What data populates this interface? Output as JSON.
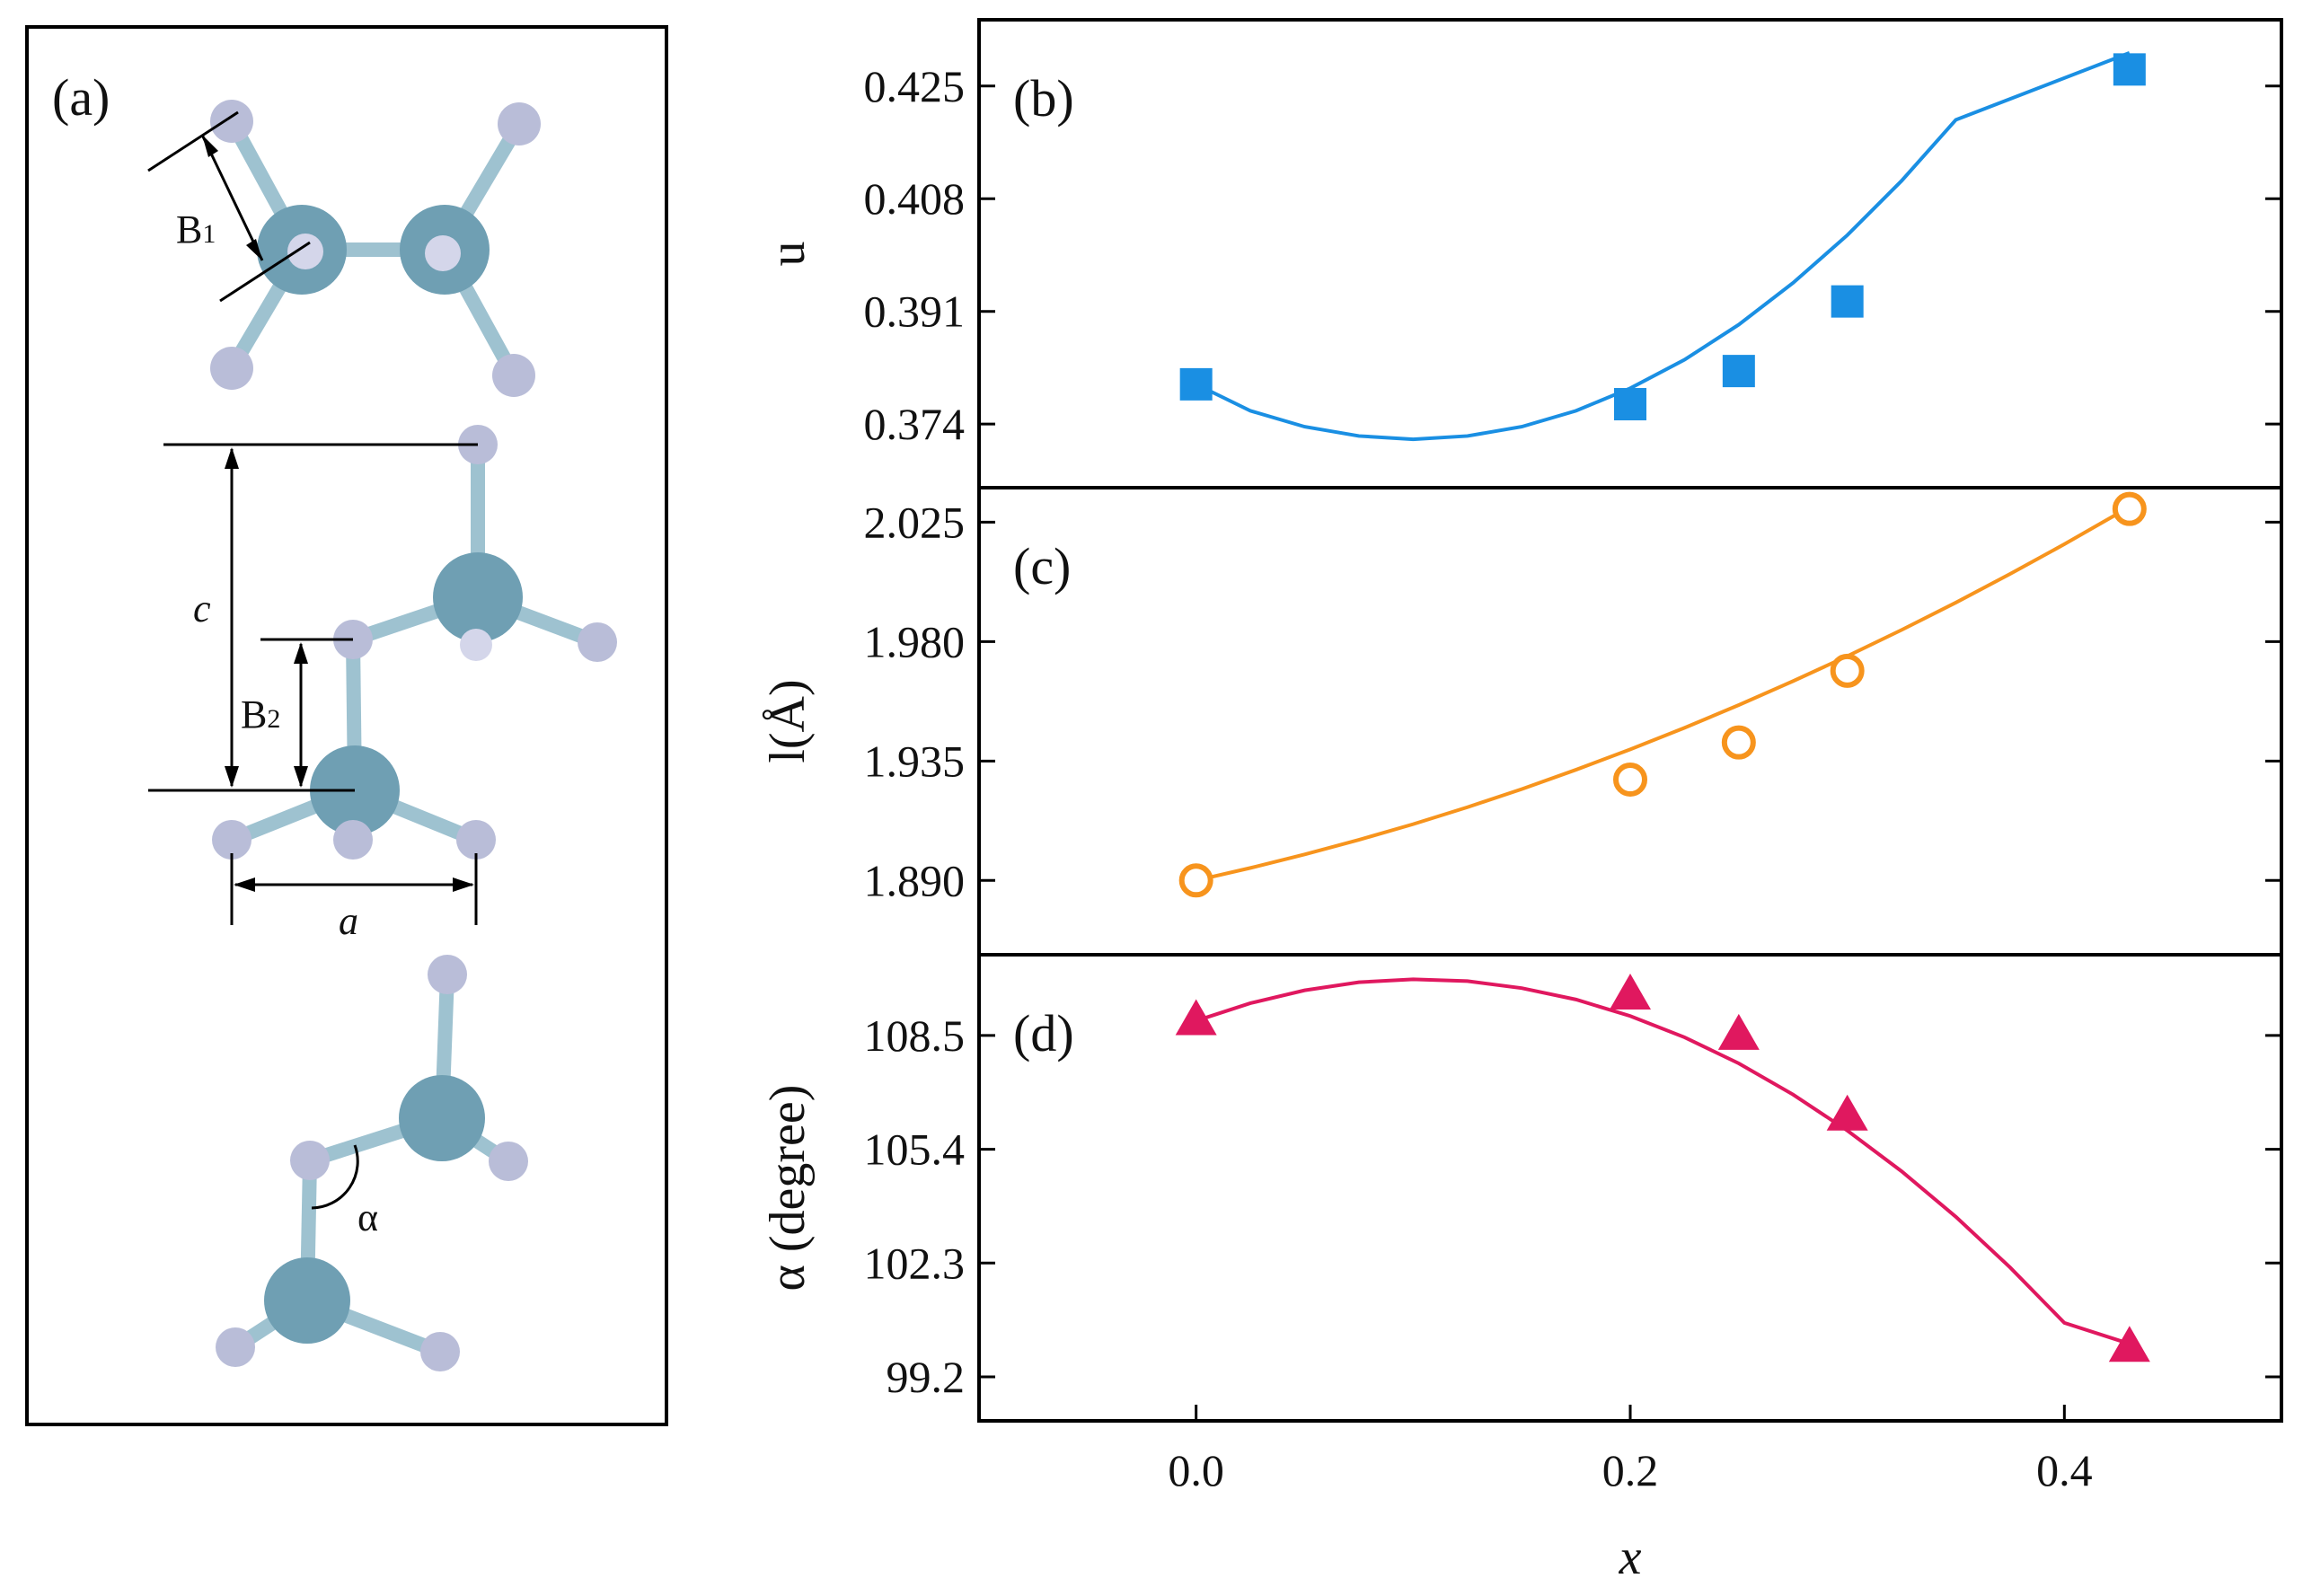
{
  "panel_a": {
    "label": "(a)",
    "bond_labels": {
      "b1": "B",
      "b1_sub": "1",
      "b2": "B",
      "b2_sub": "2"
    },
    "lattice_labels": {
      "c": "c",
      "a": "a"
    },
    "angle_label": "α",
    "colors": {
      "large_atom": "#6f9fb3",
      "small_atom": "#b9bdd8",
      "frame": "#000000"
    }
  },
  "chart_data": [
    {
      "type": "line",
      "panel_label": "(b)",
      "ylabel": "u",
      "xlabel": "",
      "x": [
        0.0,
        0.2,
        0.25,
        0.3,
        0.43
      ],
      "y": [
        0.38,
        0.377,
        0.382,
        0.3925,
        0.4275
      ],
      "fit": [
        0.38,
        0.376,
        0.3736,
        0.3722,
        0.3717,
        0.3722,
        0.3736,
        0.376,
        0.3794,
        0.3837,
        0.389,
        0.3953,
        0.4025,
        0.4107,
        0.4199,
        0.43
      ],
      "fit_x_max": 0.43,
      "yticks": [
        0.374,
        0.391,
        0.408,
        0.425
      ],
      "ytick_labels": [
        "0.374",
        "0.391",
        "0.408",
        "0.425"
      ],
      "ylim": [
        0.3644,
        0.435
      ],
      "xlim": [
        -0.1,
        0.5
      ],
      "marker": "square-filled",
      "color": "#1a8fe3"
    },
    {
      "type": "line",
      "panel_label": "(c)",
      "ylabel": "l(Å)",
      "xlabel": "",
      "x": [
        0.0,
        0.2,
        0.25,
        0.3,
        0.43
      ],
      "y": [
        1.89,
        1.928,
        1.942,
        1.969,
        2.03
      ],
      "fit": [
        1.89,
        1.8947,
        1.8998,
        1.9053,
        1.9112,
        1.9176,
        1.9244,
        1.9317,
        1.9394,
        1.9475,
        1.9561,
        1.9651,
        1.9745,
        1.9844,
        1.9947,
        2.0055,
        2.0167,
        2.0284,
        2.03
      ],
      "fit_x_max": 0.43,
      "yticks": [
        1.89,
        1.935,
        1.98,
        2.025
      ],
      "ytick_labels": [
        "1.890",
        "1.935",
        "1.980",
        "2.025"
      ],
      "ylim": [
        1.862,
        2.038
      ],
      "xlim": [
        -0.1,
        0.5
      ],
      "marker": "circle-open",
      "color": "#f7941d"
    },
    {
      "type": "line",
      "panel_label": "(d)",
      "ylabel": "α (degree)",
      "xlabel": "x",
      "x": [
        0.0,
        0.2,
        0.25,
        0.3,
        0.43
      ],
      "y": [
        108.9,
        109.6,
        108.5,
        106.3,
        100.0
      ],
      "fit": [
        108.9,
        109.38,
        109.73,
        109.95,
        110.03,
        109.98,
        109.79,
        109.48,
        109.03,
        108.45,
        107.74,
        106.89,
        105.91,
        104.8,
        103.56,
        102.18,
        100.67,
        100.1
      ],
      "fit_x_max": 0.43,
      "yticks": [
        99.2,
        102.3,
        105.4,
        108.5
      ],
      "ytick_labels": [
        "99.2",
        "102.3",
        "105.4",
        "108.5"
      ],
      "xticks": [
        0.0,
        0.2,
        0.4
      ],
      "xtick_labels": [
        "0.0",
        "0.2",
        "0.4"
      ],
      "ylim": [
        98.0,
        110.7
      ],
      "xlim": [
        -0.1,
        0.5
      ],
      "marker": "triangle-filled",
      "color": "#e0185f"
    }
  ]
}
